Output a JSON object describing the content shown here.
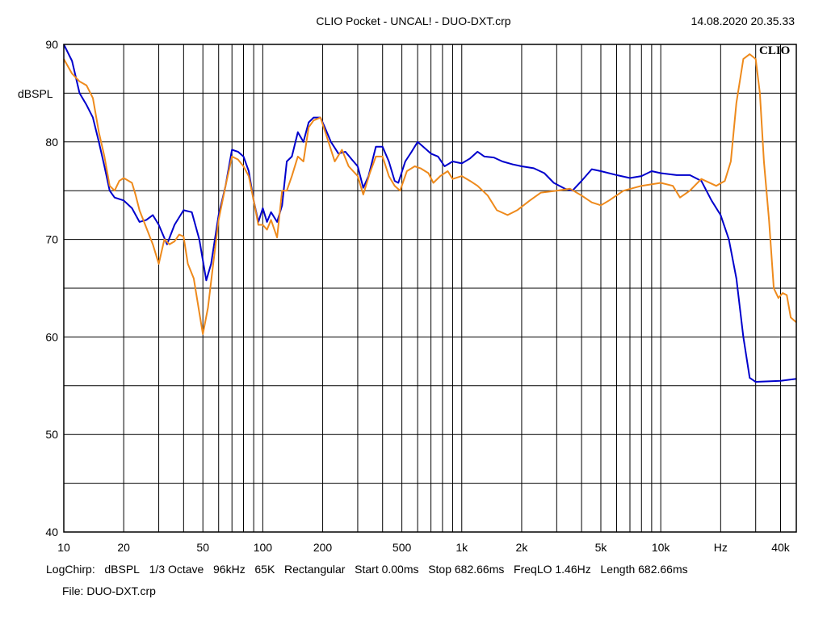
{
  "header": {
    "title": "CLIO Pocket - UNCAL! - DUO-DXT.crp",
    "timestamp": "14.08.2020 20.35.33",
    "logo": "CLIO"
  },
  "footer": {
    "settings": [
      "LogChirp:",
      "dBSPL",
      "1/3 Octave",
      "96kHz",
      "65K",
      "Rectangular",
      "Start 0.00ms",
      "Stop 682.66ms",
      "FreqLO 1.46Hz",
      "Length 682.66ms"
    ],
    "file": "File: DUO-DXT.crp"
  },
  "chart_data": {
    "type": "line",
    "title": "CLIO Pocket - UNCAL! - DUO-DXT.crp",
    "ylabel": "dBSPL",
    "xlabel": "Hz",
    "xscale": "log",
    "xlim": [
      10,
      48000
    ],
    "ylim": [
      40,
      90
    ],
    "grid": true,
    "xticks": [
      {
        "v": 10,
        "label": "10"
      },
      {
        "v": 20,
        "label": "20"
      },
      {
        "v": 50,
        "label": "50"
      },
      {
        "v": 100,
        "label": "100"
      },
      {
        "v": 200,
        "label": "200"
      },
      {
        "v": 500,
        "label": "500"
      },
      {
        "v": 1000,
        "label": "1k"
      },
      {
        "v": 2000,
        "label": "2k"
      },
      {
        "v": 5000,
        "label": "5k"
      },
      {
        "v": 10000,
        "label": "10k"
      },
      {
        "v": 20000,
        "label": "Hz"
      },
      {
        "v": 40000,
        "label": "40k"
      }
    ],
    "yticks": [
      {
        "v": 90,
        "label": "90"
      },
      {
        "v": 80,
        "label": "80"
      },
      {
        "v": 70,
        "label": "70"
      },
      {
        "v": 60,
        "label": "60"
      },
      {
        "v": 50,
        "label": "50"
      },
      {
        "v": 40,
        "label": "40"
      }
    ],
    "series": [
      {
        "color": "#0000cc",
        "points": [
          [
            10,
            90
          ],
          [
            11,
            88.3
          ],
          [
            12,
            85
          ],
          [
            13,
            83.8
          ],
          [
            14,
            82.5
          ],
          [
            15,
            80
          ],
          [
            16,
            77.5
          ],
          [
            17,
            75
          ],
          [
            18,
            74.3
          ],
          [
            20,
            74
          ],
          [
            22,
            73.2
          ],
          [
            24,
            71.8
          ],
          [
            26,
            72
          ],
          [
            28,
            72.5
          ],
          [
            30,
            71.5
          ],
          [
            33,
            69.5
          ],
          [
            36,
            71.5
          ],
          [
            40,
            73
          ],
          [
            44,
            72.8
          ],
          [
            48,
            70
          ],
          [
            52,
            65.8
          ],
          [
            55,
            67.5
          ],
          [
            60,
            72.5
          ],
          [
            65,
            75.5
          ],
          [
            70,
            79.2
          ],
          [
            75,
            79
          ],
          [
            80,
            78.5
          ],
          [
            85,
            77
          ],
          [
            90,
            74
          ],
          [
            95,
            71.8
          ],
          [
            100,
            73.2
          ],
          [
            105,
            71.8
          ],
          [
            110,
            72.8
          ],
          [
            118,
            71.8
          ],
          [
            125,
            73.5
          ],
          [
            132,
            78
          ],
          [
            140,
            78.5
          ],
          [
            150,
            81
          ],
          [
            160,
            80
          ],
          [
            170,
            82
          ],
          [
            180,
            82.5
          ],
          [
            195,
            82.5
          ],
          [
            205,
            81.5
          ],
          [
            220,
            80
          ],
          [
            240,
            78.8
          ],
          [
            260,
            79
          ],
          [
            280,
            78.2
          ],
          [
            300,
            77.5
          ],
          [
            320,
            75.3
          ],
          [
            340,
            76.5
          ],
          [
            370,
            79.5
          ],
          [
            400,
            79.5
          ],
          [
            430,
            78
          ],
          [
            460,
            76
          ],
          [
            480,
            75.8
          ],
          [
            520,
            78
          ],
          [
            560,
            79
          ],
          [
            600,
            80
          ],
          [
            640,
            79.5
          ],
          [
            700,
            78.8
          ],
          [
            760,
            78.5
          ],
          [
            820,
            77.5
          ],
          [
            900,
            78
          ],
          [
            1000,
            77.8
          ],
          [
            1100,
            78.3
          ],
          [
            1200,
            79
          ],
          [
            1300,
            78.5
          ],
          [
            1450,
            78.4
          ],
          [
            1600,
            78
          ],
          [
            1800,
            77.7
          ],
          [
            2000,
            77.5
          ],
          [
            2300,
            77.3
          ],
          [
            2600,
            76.8
          ],
          [
            2900,
            75.8
          ],
          [
            3300,
            75.2
          ],
          [
            3600,
            75
          ],
          [
            4000,
            76
          ],
          [
            4500,
            77.2
          ],
          [
            5000,
            77
          ],
          [
            6000,
            76.6
          ],
          [
            7000,
            76.3
          ],
          [
            8000,
            76.5
          ],
          [
            9000,
            77
          ],
          [
            10000,
            76.8
          ],
          [
            12000,
            76.6
          ],
          [
            14000,
            76.6
          ],
          [
            16000,
            76
          ],
          [
            18000,
            74
          ],
          [
            20000,
            72.5
          ],
          [
            22000,
            70
          ],
          [
            24000,
            66
          ],
          [
            26000,
            60
          ],
          [
            28000,
            55.8
          ],
          [
            30000,
            55.4
          ],
          [
            40000,
            55.5
          ],
          [
            48000,
            55.7
          ]
        ]
      },
      {
        "color": "#ee8a1c",
        "points": [
          [
            10,
            88.5
          ],
          [
            11,
            87
          ],
          [
            12,
            86.2
          ],
          [
            13,
            85.8
          ],
          [
            14,
            84.5
          ],
          [
            15,
            81
          ],
          [
            16,
            78.5
          ],
          [
            17,
            75.5
          ],
          [
            18,
            75
          ],
          [
            19,
            76
          ],
          [
            20,
            76.3
          ],
          [
            22,
            75.8
          ],
          [
            23,
            74.5
          ],
          [
            24,
            73
          ],
          [
            26,
            71.2
          ],
          [
            28,
            69.5
          ],
          [
            30,
            67.5
          ],
          [
            32,
            70
          ],
          [
            34,
            69.5
          ],
          [
            36,
            69.8
          ],
          [
            38,
            70.5
          ],
          [
            40,
            70.3
          ],
          [
            42,
            67.5
          ],
          [
            45,
            66
          ],
          [
            48,
            62.5
          ],
          [
            50,
            60.3
          ],
          [
            53,
            63
          ],
          [
            56,
            67
          ],
          [
            60,
            72
          ],
          [
            65,
            75.5
          ],
          [
            70,
            78.5
          ],
          [
            75,
            78.2
          ],
          [
            80,
            77.5
          ],
          [
            85,
            76.5
          ],
          [
            90,
            74
          ],
          [
            95,
            71.5
          ],
          [
            100,
            71.5
          ],
          [
            105,
            71
          ],
          [
            110,
            72
          ],
          [
            118,
            70.2
          ],
          [
            125,
            75
          ],
          [
            132,
            75
          ],
          [
            140,
            76.5
          ],
          [
            150,
            78.5
          ],
          [
            160,
            78
          ],
          [
            170,
            81.5
          ],
          [
            180,
            82.2
          ],
          [
            195,
            82.5
          ],
          [
            210,
            80.5
          ],
          [
            230,
            78
          ],
          [
            250,
            79.2
          ],
          [
            270,
            77.5
          ],
          [
            300,
            76.5
          ],
          [
            320,
            74.6
          ],
          [
            345,
            76.8
          ],
          [
            370,
            78.5
          ],
          [
            400,
            78.5
          ],
          [
            430,
            76.5
          ],
          [
            460,
            75.5
          ],
          [
            490,
            75
          ],
          [
            530,
            77
          ],
          [
            580,
            77.5
          ],
          [
            620,
            77.3
          ],
          [
            680,
            76.8
          ],
          [
            720,
            75.8
          ],
          [
            780,
            76.5
          ],
          [
            850,
            77
          ],
          [
            900,
            76.2
          ],
          [
            1000,
            76.5
          ],
          [
            1100,
            76
          ],
          [
            1200,
            75.5
          ],
          [
            1350,
            74.5
          ],
          [
            1500,
            73
          ],
          [
            1700,
            72.5
          ],
          [
            1900,
            73
          ],
          [
            2200,
            74
          ],
          [
            2500,
            74.8
          ],
          [
            3000,
            75
          ],
          [
            3500,
            75.2
          ],
          [
            4000,
            74.5
          ],
          [
            4500,
            73.8
          ],
          [
            5000,
            73.5
          ],
          [
            5500,
            74
          ],
          [
            6500,
            75
          ],
          [
            8000,
            75.5
          ],
          [
            10000,
            75.8
          ],
          [
            11500,
            75.5
          ],
          [
            12500,
            74.3
          ],
          [
            14000,
            75
          ],
          [
            16000,
            76.2
          ],
          [
            19000,
            75.5
          ],
          [
            21000,
            76
          ],
          [
            22500,
            78
          ],
          [
            24000,
            84
          ],
          [
            26000,
            88.5
          ],
          [
            28000,
            89
          ],
          [
            30000,
            88.5
          ],
          [
            31500,
            85
          ],
          [
            33000,
            78
          ],
          [
            35000,
            72
          ],
          [
            37000,
            65
          ],
          [
            39000,
            64
          ],
          [
            41000,
            64.5
          ],
          [
            43000,
            64.3
          ],
          [
            45000,
            62
          ],
          [
            48000,
            61.5
          ]
        ]
      }
    ]
  }
}
